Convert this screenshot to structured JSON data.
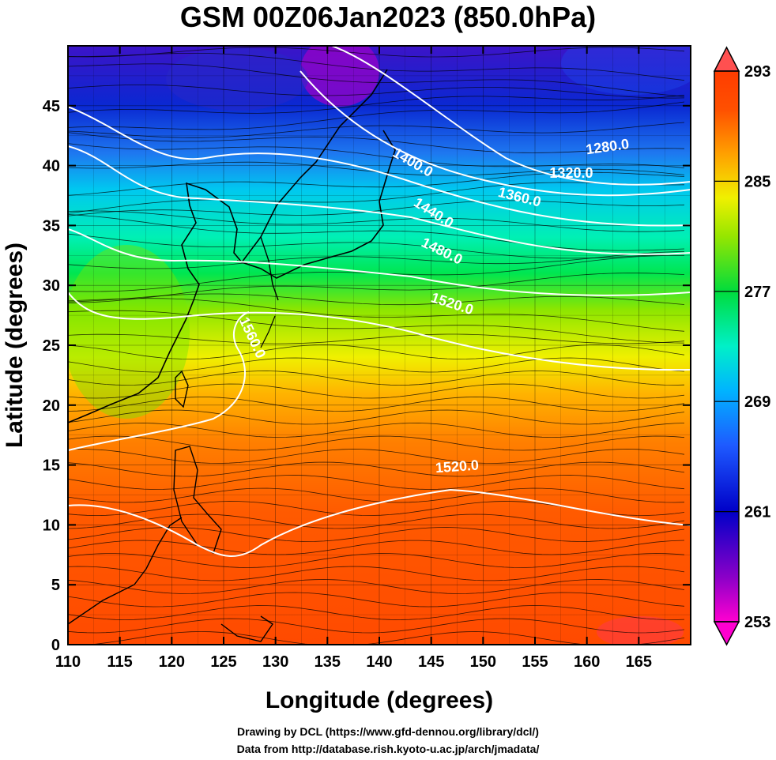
{
  "title": "GSM 00Z06Jan2023 (850.0hPa)",
  "credits": {
    "line1": "Drawing by DCL (https://www.gfd-dennou.org/library/dcl/)",
    "line2": "Data from http://database.rish.kyoto-u.ac.jp/arch/jmadata/"
  },
  "map_data": {
    "type": "heatmap",
    "xlabel": "Longitude (degrees)",
    "ylabel": "Latitude  (degrees)",
    "xlim": [
      110,
      170
    ],
    "ylim": [
      0,
      50
    ],
    "x_ticks": [
      "110",
      "115",
      "120",
      "125",
      "130",
      "135",
      "140",
      "145",
      "150",
      "155",
      "160",
      "165"
    ],
    "y_ticks": [
      "0",
      "5",
      "10",
      "15",
      "20",
      "25",
      "30",
      "35",
      "40",
      "45"
    ],
    "colorbar": {
      "min": 253,
      "max": 293,
      "ticks": [
        "253",
        "261",
        "269",
        "277",
        "285",
        "293"
      ]
    },
    "contour_labels": [
      {
        "text": "1280.0",
        "lon": 162,
        "lat": 41.5,
        "angle": -8
      },
      {
        "text": "1320.0",
        "lon": 158.5,
        "lat": 39.3,
        "angle": 0
      },
      {
        "text": "1360.0",
        "lon": 153.5,
        "lat": 37.3,
        "angle": 14
      },
      {
        "text": "1400.0",
        "lon": 143.2,
        "lat": 40.2,
        "angle": 30
      },
      {
        "text": "1440.0",
        "lon": 145.2,
        "lat": 36.0,
        "angle": 32
      },
      {
        "text": "1480.0",
        "lon": 146.0,
        "lat": 32.8,
        "angle": 26
      },
      {
        "text": "1520.0",
        "lon": 147.0,
        "lat": 28.4,
        "angle": 18
      },
      {
        "text": "1560.0",
        "lon": 127.7,
        "lat": 25.6,
        "angle": 65
      },
      {
        "text": "1520.0",
        "lon": 147.5,
        "lat": 14.8,
        "angle": -4
      }
    ]
  },
  "colors": {
    "colorbar_stops": [
      "#ff00d0",
      "#5a00c8",
      "#0000c8",
      "#2864ff",
      "#00c8f0",
      "#00f0b4",
      "#00e650",
      "#aaf000",
      "#ffe600",
      "#ff9600",
      "#ff3c00",
      "#ff5050"
    ]
  }
}
